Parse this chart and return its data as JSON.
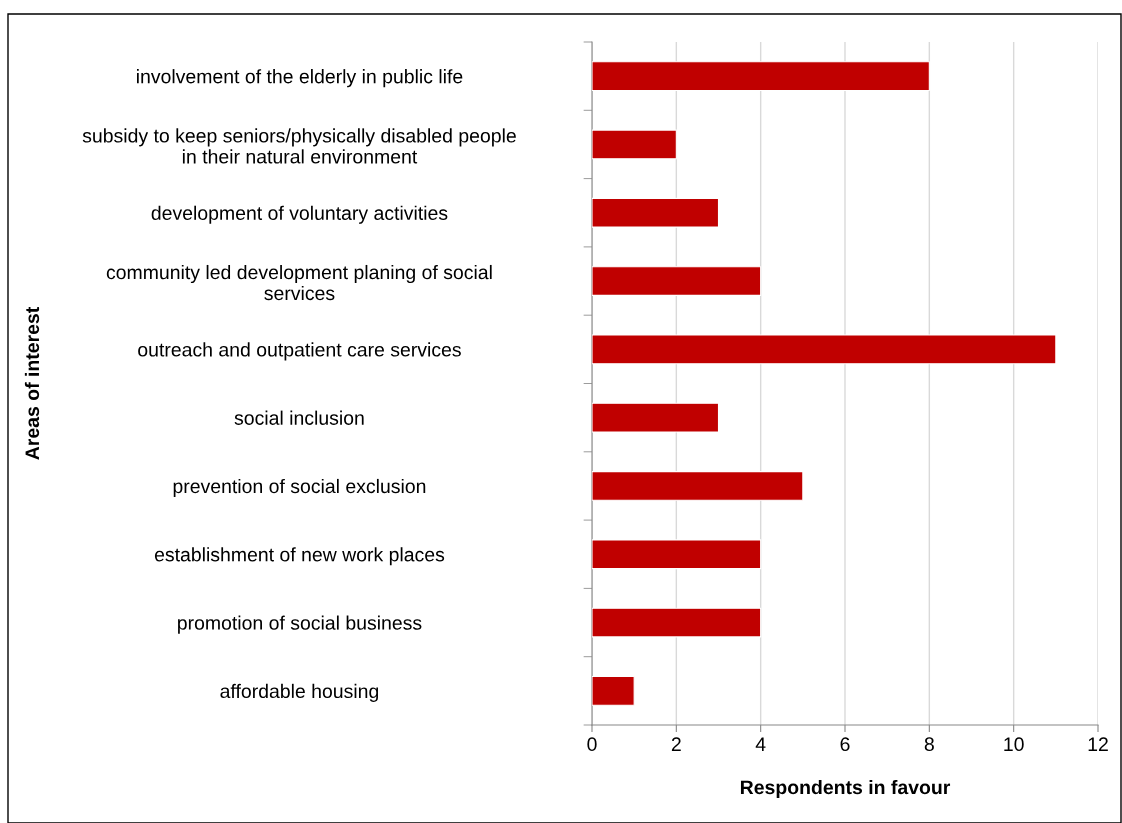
{
  "chart_data": {
    "type": "bar",
    "orientation": "horizontal",
    "xlabel": "Respondents in favour",
    "ylabel": "Areas of interest",
    "categories": [
      "involvement of the elderly in public life",
      "subsidy to keep seniors/physically disabled people\nin their natural environment",
      "development of voluntary activities",
      "community led development planing of social\nservices",
      "outreach and outpatient care services",
      "social inclusion",
      "prevention of social exclusion",
      "establishment of new work places",
      "promotion of social business",
      "affordable housing"
    ],
    "values": [
      8,
      2,
      3,
      4,
      11,
      3,
      5,
      4,
      4,
      1
    ],
    "color": "#c00000",
    "xlim": [
      0,
      12
    ],
    "xticks": [
      0,
      2,
      4,
      6,
      8,
      10,
      12
    ],
    "grid": "x",
    "legend": false
  }
}
